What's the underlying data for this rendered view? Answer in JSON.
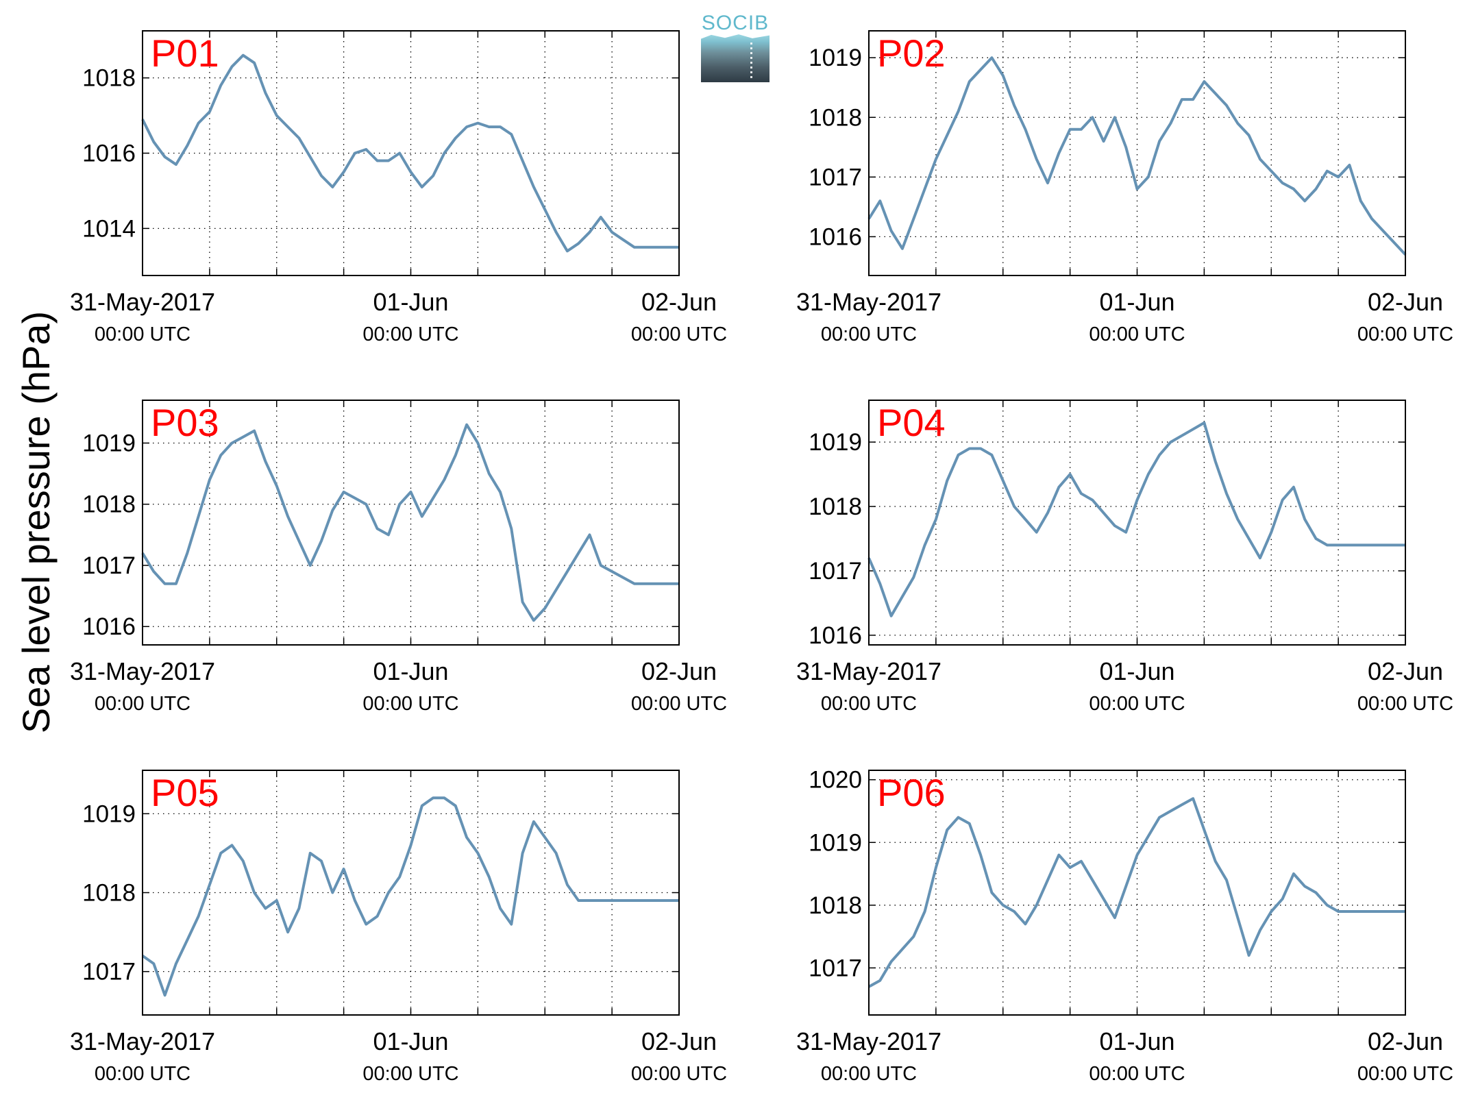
{
  "figure": {
    "ylabel": "Sea level pressure (hPa)",
    "logo_text": "SOCIB",
    "line_color": "#6592b4",
    "title_color": "#ff0000"
  },
  "chart_data": [
    {
      "type": "line",
      "title": "P01",
      "x_ticks": [
        "31-May-2017",
        "01-Jun",
        "02-Jun"
      ],
      "x_tick_sublabels": [
        "00:00 UTC",
        "00:00 UTC",
        "00:00 UTC"
      ],
      "x_range_hours": [
        0,
        48
      ],
      "ylim": [
        1012.75,
        1019.25
      ],
      "y_ticks": [
        1014,
        1016,
        1018
      ],
      "grid": true,
      "series": [
        {
          "x": [
            0,
            1,
            2,
            3,
            4,
            5,
            6,
            7,
            8,
            9,
            10,
            11,
            12,
            13,
            14,
            15,
            16,
            17,
            18,
            19,
            20,
            21,
            22,
            23,
            24,
            25,
            26,
            27,
            28,
            29,
            30,
            31,
            32,
            33,
            34,
            35,
            36,
            37,
            38,
            39,
            40,
            41,
            42,
            43,
            44,
            45,
            46,
            47,
            48
          ],
          "y": [
            1016.9,
            1016.3,
            1015.9,
            1015.7,
            1016.2,
            1016.8,
            1017.1,
            1017.8,
            1018.3,
            1018.6,
            1018.4,
            1017.6,
            1017.0,
            1016.7,
            1016.4,
            1015.9,
            1015.4,
            1015.1,
            1015.5,
            1016.0,
            1016.1,
            1015.8,
            1015.8,
            1016.0,
            1015.5,
            1015.1,
            1015.4,
            1016.0,
            1016.4,
            1016.7,
            1016.8,
            1016.7,
            1016.7,
            1016.5,
            1015.8,
            1015.1,
            1014.5,
            1013.9,
            1013.4,
            1013.6,
            1013.9,
            1014.3,
            1013.9,
            1013.7,
            1013.5,
            1013.5,
            1013.5,
            1013.5,
            1013.5
          ]
        }
      ]
    },
    {
      "type": "line",
      "title": "P02",
      "x_ticks": [
        "31-May-2017",
        "01-Jun",
        "02-Jun"
      ],
      "x_tick_sublabels": [
        "00:00 UTC",
        "00:00 UTC",
        "00:00 UTC"
      ],
      "x_range_hours": [
        0,
        48
      ],
      "ylim": [
        1015.35,
        1019.45
      ],
      "y_ticks": [
        1016,
        1017,
        1018,
        1019
      ],
      "grid": true,
      "series": [
        {
          "x": [
            0,
            1,
            2,
            3,
            4,
            5,
            6,
            7,
            8,
            9,
            10,
            11,
            12,
            13,
            14,
            15,
            16,
            17,
            18,
            19,
            20,
            21,
            22,
            23,
            24,
            25,
            26,
            27,
            28,
            29,
            30,
            31,
            32,
            33,
            34,
            35,
            36,
            37,
            38,
            39,
            40,
            41,
            42,
            43,
            44,
            45,
            46,
            47,
            48
          ],
          "y": [
            1016.3,
            1016.6,
            1016.1,
            1015.8,
            1016.3,
            1016.8,
            1017.3,
            1017.7,
            1018.1,
            1018.6,
            1018.8,
            1019.0,
            1018.7,
            1018.2,
            1017.8,
            1017.3,
            1016.9,
            1017.4,
            1017.8,
            1017.8,
            1018.0,
            1017.6,
            1018.0,
            1017.5,
            1016.8,
            1017.0,
            1017.6,
            1017.9,
            1018.3,
            1018.3,
            1018.6,
            1018.4,
            1018.2,
            1017.9,
            1017.7,
            1017.3,
            1017.1,
            1016.9,
            1016.8,
            1016.6,
            1016.8,
            1017.1,
            1017.0,
            1017.2,
            1016.6,
            1016.3,
            1016.1,
            1015.9,
            1015.7
          ]
        }
      ]
    },
    {
      "type": "line",
      "title": "P03",
      "x_ticks": [
        "31-May-2017",
        "01-Jun",
        "02-Jun"
      ],
      "x_tick_sublabels": [
        "00:00 UTC",
        "00:00 UTC",
        "00:00 UTC"
      ],
      "x_range_hours": [
        0,
        48
      ],
      "ylim": [
        1015.7,
        1019.7
      ],
      "y_ticks": [
        1016,
        1017,
        1018,
        1019
      ],
      "grid": true,
      "series": [
        {
          "x": [
            0,
            1,
            2,
            3,
            4,
            5,
            6,
            7,
            8,
            9,
            10,
            11,
            12,
            13,
            14,
            15,
            16,
            17,
            18,
            19,
            20,
            21,
            22,
            23,
            24,
            25,
            26,
            27,
            28,
            29,
            30,
            31,
            32,
            33,
            34,
            35,
            36,
            37,
            38,
            39,
            40,
            41,
            42,
            43,
            44,
            45,
            46,
            47,
            48
          ],
          "y": [
            1017.2,
            1016.9,
            1016.7,
            1016.7,
            1017.2,
            1017.8,
            1018.4,
            1018.8,
            1019.0,
            1019.1,
            1019.2,
            1018.7,
            1018.3,
            1017.8,
            1017.4,
            1017.0,
            1017.4,
            1017.9,
            1018.2,
            1018.1,
            1018.0,
            1017.6,
            1017.5,
            1018.0,
            1018.2,
            1017.8,
            1018.1,
            1018.4,
            1018.8,
            1019.3,
            1019.0,
            1018.5,
            1018.2,
            1017.6,
            1016.4,
            1016.1,
            1016.3,
            1016.6,
            1016.9,
            1017.2,
            1017.5,
            1017.0,
            1016.9,
            1016.8,
            1016.7,
            1016.7,
            1016.7,
            1016.7,
            1016.7
          ]
        }
      ]
    },
    {
      "type": "line",
      "title": "P04",
      "x_ticks": [
        "31-May-2017",
        "01-Jun",
        "02-Jun"
      ],
      "x_tick_sublabels": [
        "00:00 UTC",
        "00:00 UTC",
        "00:00 UTC"
      ],
      "x_range_hours": [
        0,
        48
      ],
      "ylim": [
        1015.85,
        1019.65
      ],
      "y_ticks": [
        1016,
        1017,
        1018,
        1019
      ],
      "grid": true,
      "series": [
        {
          "x": [
            0,
            1,
            2,
            3,
            4,
            5,
            6,
            7,
            8,
            9,
            10,
            11,
            12,
            13,
            14,
            15,
            16,
            17,
            18,
            19,
            20,
            21,
            22,
            23,
            24,
            25,
            26,
            27,
            28,
            29,
            30,
            31,
            32,
            33,
            34,
            35,
            36,
            37,
            38,
            39,
            40,
            41,
            42,
            43,
            44,
            45,
            46,
            47,
            48
          ],
          "y": [
            1017.2,
            1016.8,
            1016.3,
            1016.6,
            1016.9,
            1017.4,
            1017.8,
            1018.4,
            1018.8,
            1018.9,
            1018.9,
            1018.8,
            1018.4,
            1018.0,
            1017.8,
            1017.6,
            1017.9,
            1018.3,
            1018.5,
            1018.2,
            1018.1,
            1017.9,
            1017.7,
            1017.6,
            1018.1,
            1018.5,
            1018.8,
            1019.0,
            1019.1,
            1019.2,
            1019.3,
            1018.7,
            1018.2,
            1017.8,
            1017.5,
            1017.2,
            1017.6,
            1018.1,
            1018.3,
            1017.8,
            1017.5,
            1017.4,
            1017.4,
            1017.4,
            1017.4,
            1017.4,
            1017.4,
            1017.4,
            1017.4
          ]
        }
      ]
    },
    {
      "type": "line",
      "title": "P05",
      "x_ticks": [
        "31-May-2017",
        "01-Jun",
        "02-Jun"
      ],
      "x_tick_sublabels": [
        "00:00 UTC",
        "00:00 UTC",
        "00:00 UTC"
      ],
      "x_range_hours": [
        0,
        48
      ],
      "ylim": [
        1016.45,
        1019.55
      ],
      "y_ticks": [
        1017,
        1018,
        1019
      ],
      "grid": true,
      "series": [
        {
          "x": [
            0,
            1,
            2,
            3,
            4,
            5,
            6,
            7,
            8,
            9,
            10,
            11,
            12,
            13,
            14,
            15,
            16,
            17,
            18,
            19,
            20,
            21,
            22,
            23,
            24,
            25,
            26,
            27,
            28,
            29,
            30,
            31,
            32,
            33,
            34,
            35,
            36,
            37,
            38,
            39,
            40,
            41,
            42,
            43,
            44,
            45,
            46,
            47,
            48
          ],
          "y": [
            1017.2,
            1017.1,
            1016.7,
            1017.1,
            1017.4,
            1017.7,
            1018.1,
            1018.5,
            1018.6,
            1018.4,
            1018.0,
            1017.8,
            1017.9,
            1017.5,
            1017.8,
            1018.5,
            1018.4,
            1018.0,
            1018.3,
            1017.9,
            1017.6,
            1017.7,
            1018.0,
            1018.2,
            1018.6,
            1019.1,
            1019.2,
            1019.2,
            1019.1,
            1018.7,
            1018.5,
            1018.2,
            1017.8,
            1017.6,
            1018.5,
            1018.9,
            1018.7,
            1018.5,
            1018.1,
            1017.9,
            1017.9,
            1017.9,
            1017.9,
            1017.9,
            1017.9,
            1017.9,
            1017.9,
            1017.9,
            1017.9
          ]
        }
      ]
    },
    {
      "type": "line",
      "title": "P06",
      "x_ticks": [
        "31-May-2017",
        "01-Jun",
        "02-Jun"
      ],
      "x_tick_sublabels": [
        "00:00 UTC",
        "00:00 UTC",
        "00:00 UTC"
      ],
      "x_range_hours": [
        0,
        48
      ],
      "ylim": [
        1016.25,
        1020.15
      ],
      "y_ticks": [
        1017,
        1018,
        1019,
        1020
      ],
      "grid": true,
      "series": [
        {
          "x": [
            0,
            1,
            2,
            3,
            4,
            5,
            6,
            7,
            8,
            9,
            10,
            11,
            12,
            13,
            14,
            15,
            16,
            17,
            18,
            19,
            20,
            21,
            22,
            23,
            24,
            25,
            26,
            27,
            28,
            29,
            30,
            31,
            32,
            33,
            34,
            35,
            36,
            37,
            38,
            39,
            40,
            41,
            42,
            43,
            44,
            45,
            46,
            47,
            48
          ],
          "y": [
            1016.7,
            1016.8,
            1017.1,
            1017.3,
            1017.5,
            1017.9,
            1018.6,
            1019.2,
            1019.4,
            1019.3,
            1018.8,
            1018.2,
            1018.0,
            1017.9,
            1017.7,
            1018.0,
            1018.4,
            1018.8,
            1018.6,
            1018.7,
            1018.4,
            1018.1,
            1017.8,
            1018.3,
            1018.8,
            1019.1,
            1019.4,
            1019.5,
            1019.6,
            1019.7,
            1019.2,
            1018.7,
            1018.4,
            1017.8,
            1017.2,
            1017.6,
            1017.9,
            1018.1,
            1018.5,
            1018.3,
            1018.2,
            1018.0,
            1017.9,
            1017.9,
            1017.9,
            1017.9,
            1017.9,
            1017.9,
            1017.9
          ]
        }
      ]
    }
  ]
}
